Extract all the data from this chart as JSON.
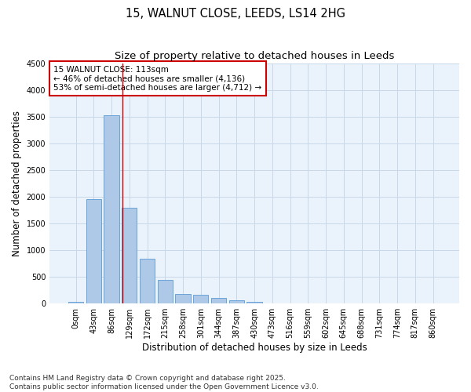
{
  "title": "15, WALNUT CLOSE, LEEDS, LS14 2HG",
  "subtitle": "Size of property relative to detached houses in Leeds",
  "xlabel": "Distribution of detached houses by size in Leeds",
  "ylabel": "Number of detached properties",
  "bar_labels": [
    "0sqm",
    "43sqm",
    "86sqm",
    "129sqm",
    "172sqm",
    "215sqm",
    "258sqm",
    "301sqm",
    "344sqm",
    "387sqm",
    "430sqm",
    "473sqm",
    "516sqm",
    "559sqm",
    "602sqm",
    "645sqm",
    "688sqm",
    "731sqm",
    "774sqm",
    "817sqm",
    "860sqm"
  ],
  "bar_values": [
    30,
    1950,
    3520,
    1800,
    840,
    450,
    175,
    160,
    100,
    60,
    30,
    10,
    3,
    2,
    1,
    1,
    0,
    0,
    0,
    0,
    0
  ],
  "bar_color": "#aec8e8",
  "bar_edge_color": "#5b9bd5",
  "vline_x": 2.63,
  "vline_color": "#cc0000",
  "annotation_text": "15 WALNUT CLOSE: 113sqm\n← 46% of detached houses are smaller (4,136)\n53% of semi-detached houses are larger (4,712) →",
  "annotation_box_color": "#ffffff",
  "annotation_box_edge": "#cc0000",
  "ylim": [
    0,
    4500
  ],
  "yticks": [
    0,
    500,
    1000,
    1500,
    2000,
    2500,
    3000,
    3500,
    4000,
    4500
  ],
  "grid_color": "#c8d8e8",
  "bg_color": "#eaf3fb",
  "footer_text": "Contains HM Land Registry data © Crown copyright and database right 2025.\nContains public sector information licensed under the Open Government Licence v3.0.",
  "title_fontsize": 10.5,
  "subtitle_fontsize": 9.5,
  "axis_label_fontsize": 8.5,
  "tick_fontsize": 7,
  "footer_fontsize": 6.5,
  "annotation_fontsize": 7.5
}
